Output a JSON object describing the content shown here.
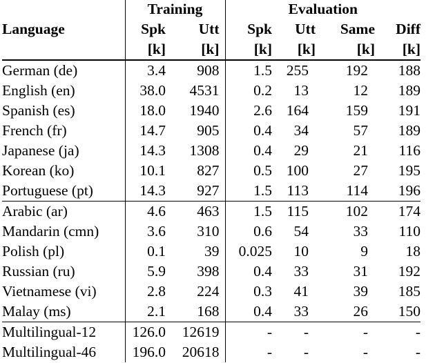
{
  "header": {
    "training": "Training",
    "evaluation": "Evaluation",
    "language": "Language",
    "spk": "Spk",
    "utt": "Utt",
    "same": "Same",
    "diff": "Diff",
    "unit": "[k]"
  },
  "groups": [
    {
      "rows": [
        {
          "lang": "German (de)",
          "train_spk": "3.4",
          "train_utt": "908",
          "eval_spk": "1.5",
          "eval_utt": "255",
          "same": "192",
          "diff": "188"
        },
        {
          "lang": "English (en)",
          "train_spk": "38.0",
          "train_utt": "4531",
          "eval_spk": "0.2",
          "eval_utt": "13",
          "same": "12",
          "diff": "189"
        },
        {
          "lang": "Spanish (es)",
          "train_spk": "18.0",
          "train_utt": "1940",
          "eval_spk": "2.6",
          "eval_utt": "164",
          "same": "159",
          "diff": "191"
        },
        {
          "lang": "French (fr)",
          "train_spk": "14.7",
          "train_utt": "905",
          "eval_spk": "0.4",
          "eval_utt": "34",
          "same": "57",
          "diff": "189"
        },
        {
          "lang": "Japanese (ja)",
          "train_spk": "14.3",
          "train_utt": "1308",
          "eval_spk": "0.4",
          "eval_utt": "29",
          "same": "21",
          "diff": "116"
        },
        {
          "lang": "Korean (ko)",
          "train_spk": "10.1",
          "train_utt": "827",
          "eval_spk": "0.5",
          "eval_utt": "100",
          "same": "27",
          "diff": "195"
        },
        {
          "lang": "Portuguese (pt)",
          "train_spk": "14.3",
          "train_utt": "927",
          "eval_spk": "1.5",
          "eval_utt": "113",
          "same": "114",
          "diff": "196"
        }
      ]
    },
    {
      "rows": [
        {
          "lang": "Arabic (ar)",
          "train_spk": "4.6",
          "train_utt": "463",
          "eval_spk": "1.5",
          "eval_utt": "115",
          "same": "102",
          "diff": "174"
        },
        {
          "lang": "Mandarin (cmn)",
          "train_spk": "3.6",
          "train_utt": "310",
          "eval_spk": "0.6",
          "eval_utt": "54",
          "same": "33",
          "diff": "110"
        },
        {
          "lang": "Polish (pl)",
          "train_spk": "0.1",
          "train_utt": "39",
          "eval_spk": "0.025",
          "eval_utt": "10",
          "same": "9",
          "diff": "18"
        },
        {
          "lang": "Russian (ru)",
          "train_spk": "5.9",
          "train_utt": "398",
          "eval_spk": "0.4",
          "eval_utt": "33",
          "same": "31",
          "diff": "192"
        },
        {
          "lang": "Vietnamese (vi)",
          "train_spk": "2.8",
          "train_utt": "224",
          "eval_spk": "0.3",
          "eval_utt": "41",
          "same": "39",
          "diff": "185"
        },
        {
          "lang": "Malay (ms)",
          "train_spk": "2.1",
          "train_utt": "168",
          "eval_spk": "0.4",
          "eval_utt": "33",
          "same": "26",
          "diff": "150"
        }
      ]
    },
    {
      "rows": [
        {
          "lang": "Multilingual-12",
          "train_spk": "126.0",
          "train_utt": "12619",
          "eval_spk": "-",
          "eval_utt": "-",
          "same": "-",
          "diff": "-"
        },
        {
          "lang": "Multilingual-46",
          "train_spk": "196.0",
          "train_utt": "20618",
          "eval_spk": "-",
          "eval_utt": "-",
          "same": "-",
          "diff": "-"
        }
      ]
    }
  ]
}
